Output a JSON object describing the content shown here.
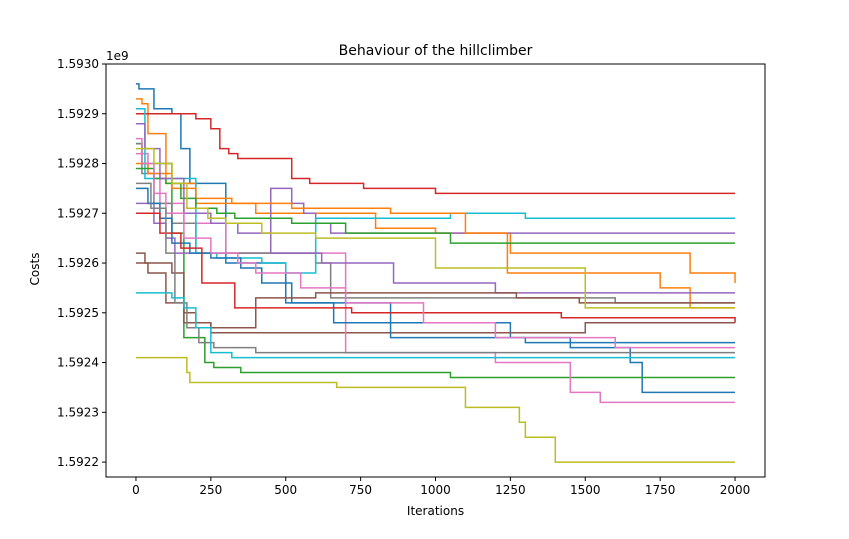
{
  "chart_data": {
    "type": "line",
    "title": "Behaviour of the hillclimber",
    "xlabel": "Iterations",
    "ylabel": "Costs",
    "offset_label": "1e9",
    "xlim": [
      -100,
      2100
    ],
    "ylim": [
      1.59217,
      1.593
    ],
    "grid": false,
    "legend": "none",
    "x_ticks": [
      {
        "value": 0,
        "label": "0"
      },
      {
        "value": 250,
        "label": "250"
      },
      {
        "value": 500,
        "label": "500"
      },
      {
        "value": 750,
        "label": "750"
      },
      {
        "value": 1000,
        "label": "1000"
      },
      {
        "value": 1250,
        "label": "1250"
      },
      {
        "value": 1500,
        "label": "1500"
      },
      {
        "value": 1750,
        "label": "1750"
      },
      {
        "value": 2000,
        "label": "2000"
      }
    ],
    "y_ticks": [
      {
        "value": 1.5922,
        "label": "1.5922"
      },
      {
        "value": 1.5923,
        "label": "1.5923"
      },
      {
        "value": 1.5924,
        "label": "1.5924"
      },
      {
        "value": 1.5925,
        "label": "1.5925"
      },
      {
        "value": 1.5926,
        "label": "1.5926"
      },
      {
        "value": 1.5927,
        "label": "1.5927"
      },
      {
        "value": 1.5928,
        "label": "1.5928"
      },
      {
        "value": 1.5929,
        "label": "1.5929"
      },
      {
        "value": 1.593,
        "label": "1.5930"
      }
    ],
    "series": [
      {
        "color": "#1f77b4",
        "x": [
          0,
          10,
          60,
          120,
          150,
          180,
          300,
          500,
          850,
          1250,
          1450,
          1650,
          1690,
          2000
        ],
        "y": [
          1.59296,
          1.59295,
          1.59291,
          1.5929,
          1.59283,
          1.59276,
          1.5926,
          1.59252,
          1.59248,
          1.59245,
          1.59243,
          1.5924,
          1.59234,
          1.59234
        ]
      },
      {
        "color": "#ff7f0e",
        "x": [
          0,
          20,
          40,
          100,
          200,
          400,
          700,
          800,
          1000,
          1250,
          1500,
          1850,
          1900,
          2000
        ],
        "y": [
          1.59293,
          1.59292,
          1.59286,
          1.59276,
          1.59272,
          1.5927,
          1.5927,
          1.59267,
          1.59266,
          1.59262,
          1.59262,
          1.59258,
          1.59258,
          1.59256
        ]
      },
      {
        "color": "#2ca02c",
        "x": [
          0,
          20,
          120,
          160,
          230,
          260,
          350,
          500,
          1050,
          1300,
          2000
        ],
        "y": [
          1.59284,
          1.5928,
          1.59266,
          1.59245,
          1.5924,
          1.59239,
          1.59238,
          1.59238,
          1.59237,
          1.59237,
          1.59237
        ]
      },
      {
        "color": "#d62728",
        "x": [
          0,
          50,
          150,
          200,
          250,
          280,
          310,
          340,
          520,
          580,
          640,
          760,
          1000,
          2000
        ],
        "y": [
          1.5929,
          1.5929,
          1.5929,
          1.59289,
          1.59287,
          1.59283,
          1.59282,
          1.59281,
          1.59277,
          1.59276,
          1.59276,
          1.59275,
          1.59274,
          1.59274
        ]
      },
      {
        "color": "#9467bd",
        "x": [
          0,
          60,
          100,
          130,
          200,
          300,
          450,
          520,
          560,
          600,
          650,
          700,
          1000,
          2000
        ],
        "y": [
          1.59272,
          1.59268,
          1.59265,
          1.59262,
          1.59262,
          1.59262,
          1.59275,
          1.59272,
          1.5927,
          1.59268,
          1.59266,
          1.59266,
          1.59266,
          1.59266
        ]
      },
      {
        "color": "#8c564b",
        "x": [
          0,
          30,
          120,
          160,
          200,
          250,
          300,
          400,
          500,
          700,
          900,
          1100,
          1500,
          2000
        ],
        "y": [
          1.59262,
          1.5926,
          1.59258,
          1.5925,
          1.59248,
          1.59246,
          1.59246,
          1.59246,
          1.59246,
          1.59246,
          1.59246,
          1.59246,
          1.59248,
          1.59248
        ]
      },
      {
        "color": "#e377c2",
        "x": [
          0,
          40,
          80,
          160,
          300,
          700,
          1200,
          1450,
          1550,
          2000
        ],
        "y": [
          1.59282,
          1.59278,
          1.59272,
          1.59268,
          1.59262,
          1.59242,
          1.5924,
          1.59234,
          1.59232,
          1.59232
        ]
      },
      {
        "color": "#7f7f7f",
        "x": [
          0,
          20,
          60,
          120,
          200,
          300,
          500,
          600,
          650,
          1100,
          1600,
          2000
        ],
        "y": [
          1.59284,
          1.59278,
          1.59272,
          1.59268,
          1.59262,
          1.59262,
          1.59262,
          1.5926,
          1.59253,
          1.59253,
          1.59252,
          1.59252
        ]
      },
      {
        "color": "#bcbd22",
        "x": [
          0,
          160,
          170,
          180,
          350,
          670,
          1100,
          1280,
          1300,
          1400,
          2000
        ],
        "y": [
          1.59241,
          1.59241,
          1.59238,
          1.59236,
          1.59236,
          1.59235,
          1.59231,
          1.59228,
          1.59225,
          1.5922,
          1.5922
        ]
      },
      {
        "color": "#17becf",
        "x": [
          0,
          30,
          200,
          270,
          350,
          420,
          500,
          600,
          1050,
          1300,
          2000
        ],
        "y": [
          1.59291,
          1.59277,
          1.59262,
          1.59261,
          1.59261,
          1.5926,
          1.59258,
          1.59269,
          1.5927,
          1.59269,
          1.59269
        ]
      },
      {
        "color": "#1f77b4",
        "x": [
          0,
          40,
          80,
          120,
          180,
          250,
          350,
          420,
          520,
          660,
          850,
          1300,
          1750,
          2000
        ],
        "y": [
          1.59275,
          1.59272,
          1.59269,
          1.59264,
          1.59262,
          1.59261,
          1.59259,
          1.59256,
          1.59252,
          1.59248,
          1.59245,
          1.59244,
          1.59244,
          1.59244
        ]
      },
      {
        "color": "#ff7f0e",
        "x": [
          0,
          40,
          120,
          200,
          320,
          520,
          640,
          850,
          1100,
          1240,
          1750,
          1850,
          2000
        ],
        "y": [
          1.5928,
          1.59278,
          1.59275,
          1.59273,
          1.59272,
          1.59271,
          1.59271,
          1.5927,
          1.59266,
          1.59258,
          1.59255,
          1.59251,
          1.59251
        ]
      },
      {
        "color": "#2ca02c",
        "x": [
          0,
          60,
          100,
          150,
          200,
          270,
          330,
          520,
          700,
          1050,
          1300,
          2000
        ],
        "y": [
          1.59279,
          1.59277,
          1.59276,
          1.59273,
          1.59271,
          1.5927,
          1.59269,
          1.59268,
          1.59266,
          1.59264,
          1.59264,
          1.59264
        ]
      },
      {
        "color": "#d62728",
        "x": [
          0,
          80,
          150,
          220,
          330,
          400,
          600,
          720,
          1000,
          1420,
          1900,
          2000
        ],
        "y": [
          1.5927,
          1.59266,
          1.59263,
          1.59256,
          1.59251,
          1.59251,
          1.59251,
          1.5925,
          1.5925,
          1.59249,
          1.59249,
          1.59248
        ]
      },
      {
        "color": "#9467bd",
        "x": [
          0,
          30,
          80,
          160,
          250,
          340,
          450,
          620,
          860,
          1200,
          2000
        ],
        "y": [
          1.59288,
          1.59283,
          1.59277,
          1.5927,
          1.59268,
          1.59266,
          1.59262,
          1.5926,
          1.59256,
          1.59254,
          1.59254
        ]
      },
      {
        "color": "#8c564b",
        "x": [
          0,
          40,
          100,
          160,
          250,
          300,
          400,
          600,
          1270,
          1480,
          2000
        ],
        "y": [
          1.5926,
          1.59258,
          1.59252,
          1.59248,
          1.59247,
          1.59247,
          1.59253,
          1.59254,
          1.59253,
          1.59252,
          1.59252
        ]
      },
      {
        "color": "#e377c2",
        "x": [
          0,
          20,
          60,
          100,
          160,
          250,
          340,
          400,
          550,
          700,
          960,
          1200,
          1600,
          2000
        ],
        "y": [
          1.59285,
          1.5928,
          1.59274,
          1.5927,
          1.59265,
          1.59262,
          1.5926,
          1.59258,
          1.59255,
          1.59252,
          1.59248,
          1.59245,
          1.59243,
          1.59243
        ]
      },
      {
        "color": "#7f7f7f",
        "x": [
          0,
          50,
          100,
          130,
          170,
          210,
          260,
          300,
          400,
          600,
          2000
        ],
        "y": [
          1.59276,
          1.59271,
          1.59262,
          1.59252,
          1.59247,
          1.59244,
          1.59243,
          1.59243,
          1.59242,
          1.59242,
          1.59242
        ]
      },
      {
        "color": "#bcbd22",
        "x": [
          0,
          60,
          120,
          170,
          240,
          300,
          420,
          600,
          1000,
          1500,
          1900,
          2000
        ],
        "y": [
          1.59283,
          1.5928,
          1.59276,
          1.59271,
          1.59269,
          1.59268,
          1.59266,
          1.59265,
          1.59259,
          1.59251,
          1.59251,
          1.59251
        ]
      },
      {
        "color": "#17becf",
        "x": [
          0,
          30,
          80,
          120,
          160,
          200,
          250,
          320,
          600,
          1000,
          1670,
          2000
        ],
        "y": [
          1.59254,
          1.59254,
          1.59254,
          1.59253,
          1.59251,
          1.59247,
          1.59242,
          1.59241,
          1.59241,
          1.59241,
          1.59241,
          1.59241
        ]
      }
    ]
  }
}
